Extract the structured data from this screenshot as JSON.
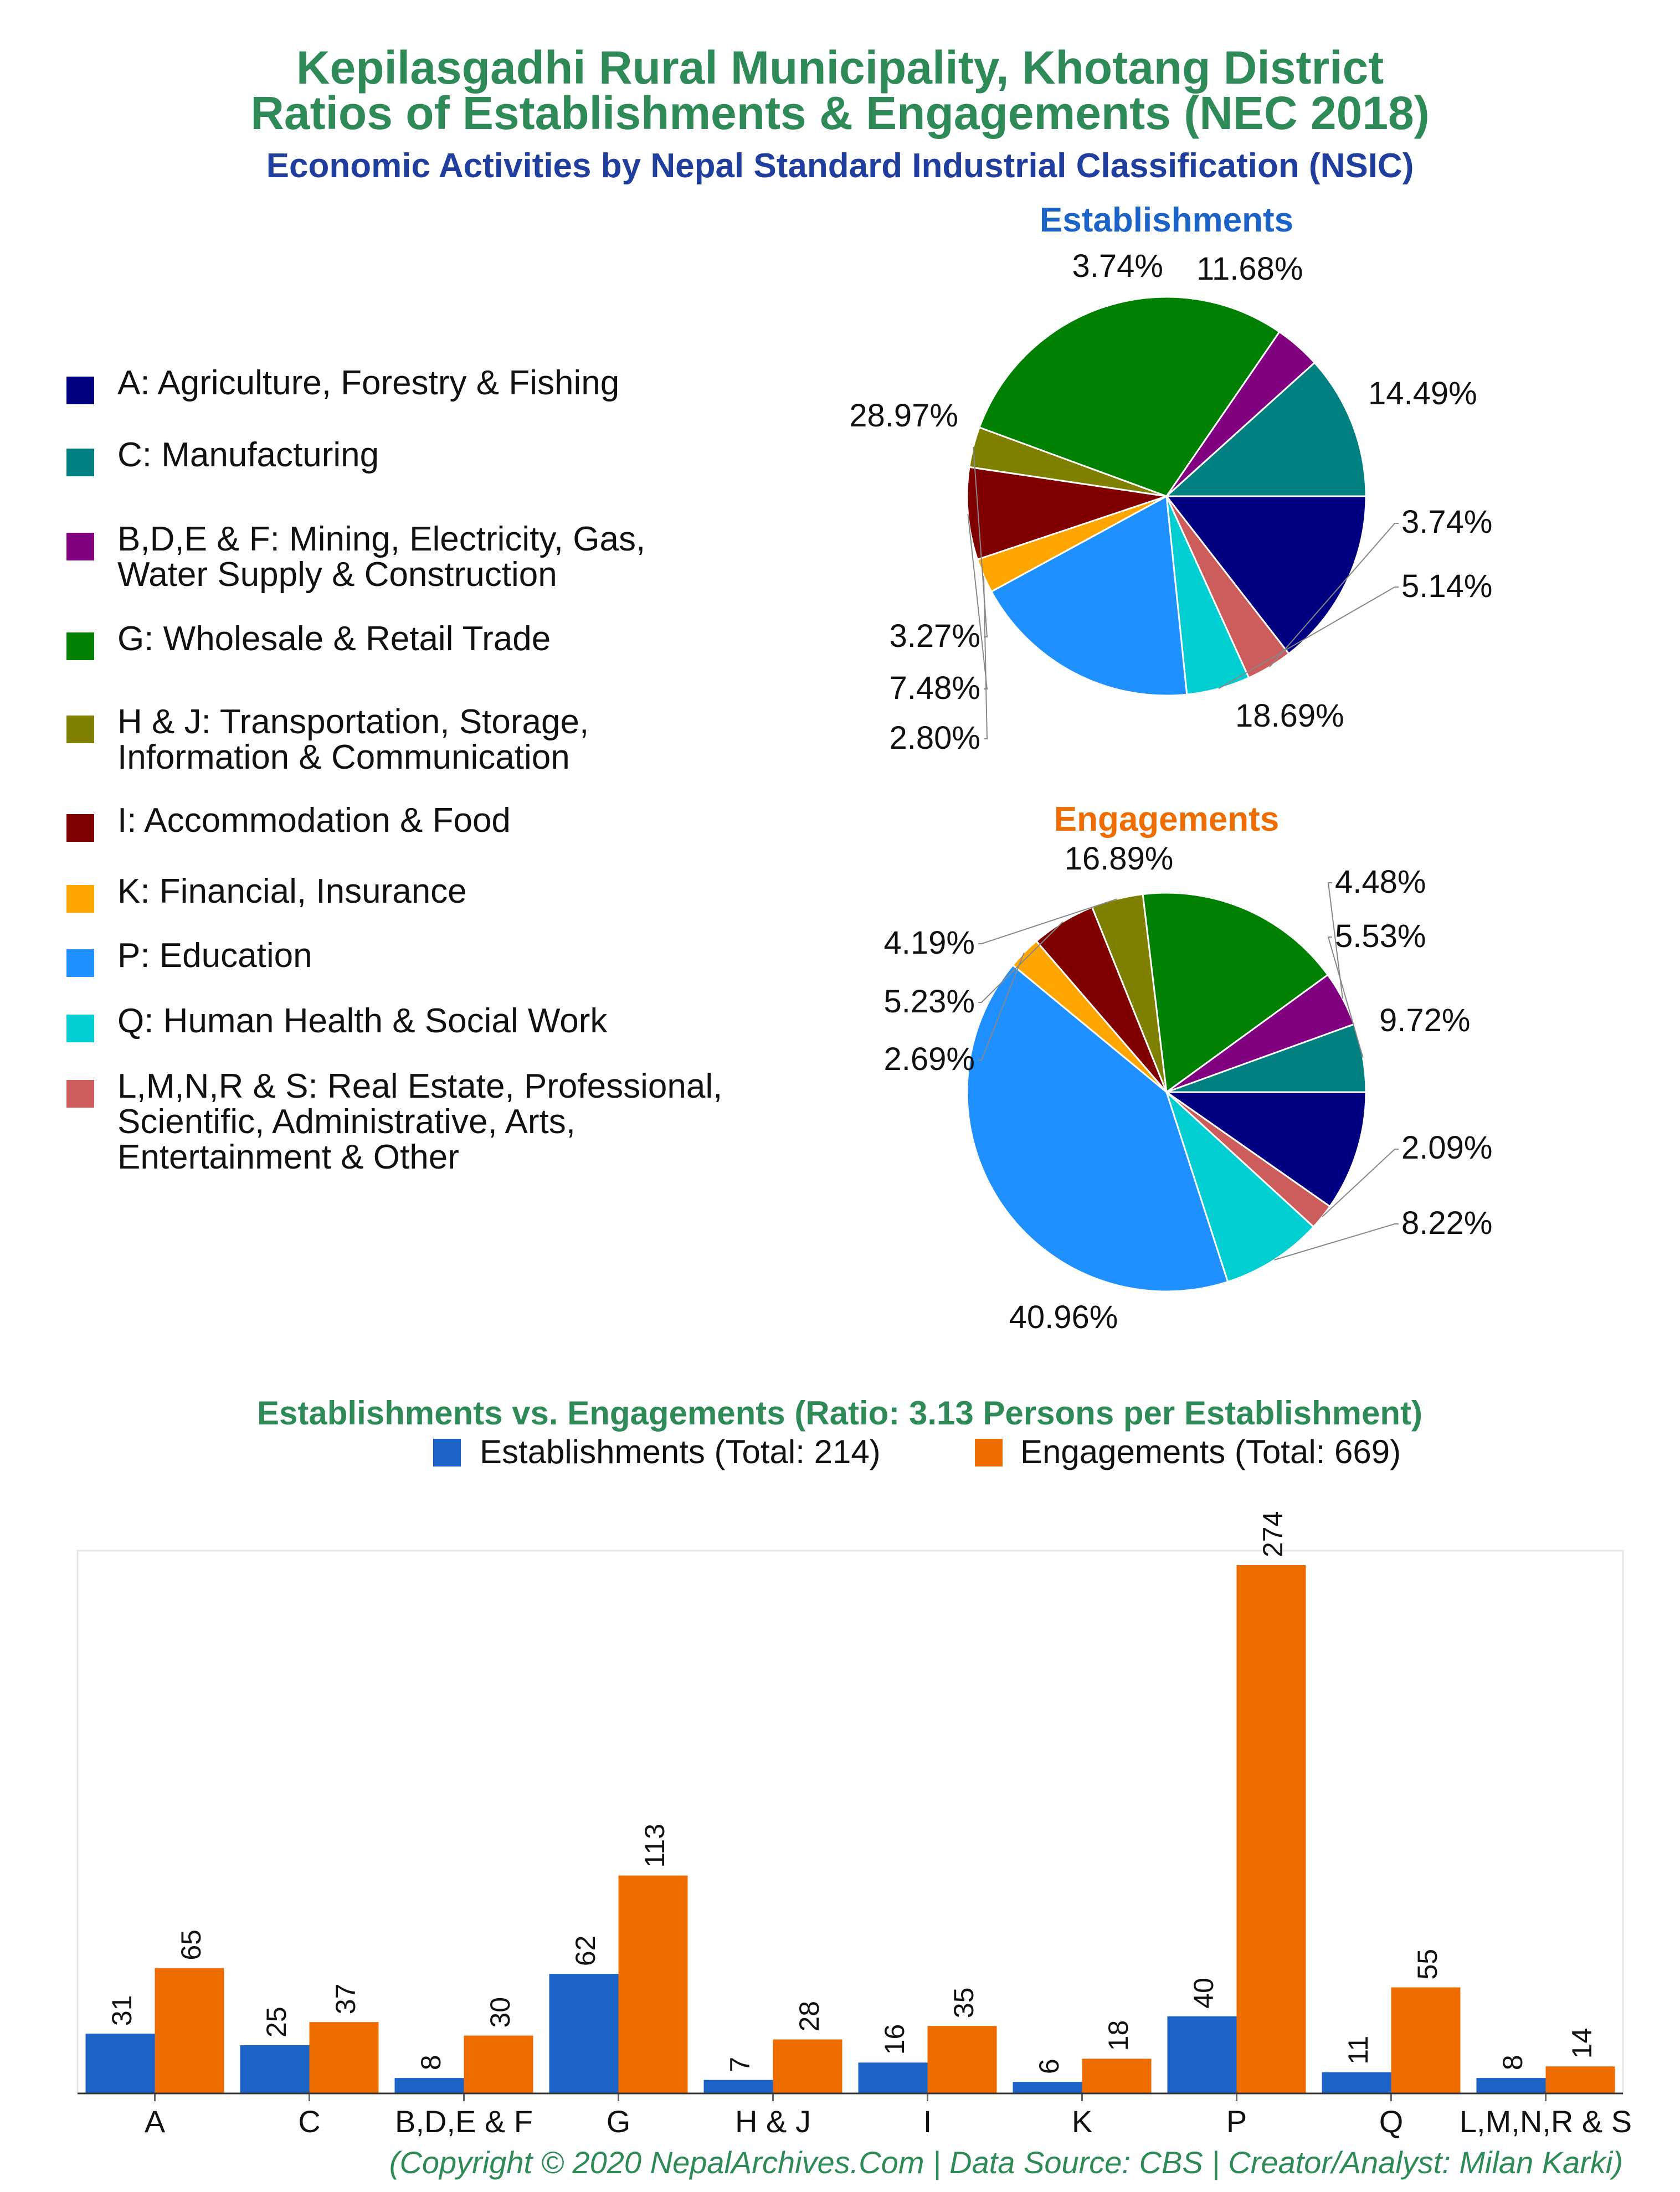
{
  "header": {
    "title_line1": "Kepilasgadhi Rural Municipality, Khotang District",
    "title_line2": "Ratios of Establishments & Engagements (NEC 2018)",
    "subtitle": "Economic Activities by Nepal Standard Industrial Classification (NSIC)"
  },
  "colors": {
    "A": "#000080",
    "C": "#008080",
    "BDEF": "#800080",
    "G": "#008000",
    "HJ": "#808000",
    "I": "#800000",
    "K": "#ffa500",
    "P": "#1e90ff",
    "Q": "#00ced1",
    "LMNRS": "#cd5c5c",
    "establishments_bar": "#1b63c6",
    "engagements_bar": "#ef6c00"
  },
  "legend": [
    {
      "key": "A",
      "label": "A: Agriculture, Forestry & Fishing"
    },
    {
      "key": "C",
      "label": "C: Manufacturing"
    },
    {
      "key": "BDEF",
      "label": "B,D,E & F: Mining, Electricity, Gas,\nWater Supply & Construction"
    },
    {
      "key": "G",
      "label": "G: Wholesale & Retail Trade"
    },
    {
      "key": "HJ",
      "label": "H & J: Transportation, Storage,\nInformation & Communication"
    },
    {
      "key": "I",
      "label": "I: Accommodation & Food"
    },
    {
      "key": "K",
      "label": "K: Financial, Insurance"
    },
    {
      "key": "P",
      "label": "P: Education"
    },
    {
      "key": "Q",
      "label": "Q: Human Health & Social Work"
    },
    {
      "key": "LMNRS",
      "label": "L,M,N,R & S: Real Estate, Professional,\nScientific, Administrative, Arts,\nEntertainment & Other"
    }
  ],
  "footer": "(Copyright © 2020 NepalArchives.Com | Data Source: CBS | Creator/Analyst: Milan Karki)",
  "chart_data": [
    {
      "type": "pie",
      "title": "Establishments",
      "title_color": "#1b63c6",
      "slices": [
        {
          "key": "A",
          "value": 14.49,
          "label": "14.49%"
        },
        {
          "key": "LMNRS",
          "value": 3.74,
          "label": "3.74%"
        },
        {
          "key": "Q",
          "value": 5.14,
          "label": "5.14%"
        },
        {
          "key": "P",
          "value": 18.69,
          "label": "18.69%"
        },
        {
          "key": "K",
          "value": 2.8,
          "label": "2.80%"
        },
        {
          "key": "I",
          "value": 7.48,
          "label": "7.48%"
        },
        {
          "key": "HJ",
          "value": 3.27,
          "label": "3.27%"
        },
        {
          "key": "G",
          "value": 28.97,
          "label": "28.97%"
        },
        {
          "key": "BDEF",
          "value": 3.74,
          "label": "3.74%"
        },
        {
          "key": "C",
          "value": 11.68,
          "label": "11.68%"
        }
      ]
    },
    {
      "type": "pie",
      "title": "Engagements",
      "title_color": "#ef6c00",
      "slices": [
        {
          "key": "A",
          "value": 9.72,
          "label": "9.72%"
        },
        {
          "key": "LMNRS",
          "value": 2.09,
          "label": "2.09%"
        },
        {
          "key": "Q",
          "value": 8.22,
          "label": "8.22%"
        },
        {
          "key": "P",
          "value": 40.96,
          "label": "40.96%"
        },
        {
          "key": "K",
          "value": 2.69,
          "label": "2.69%"
        },
        {
          "key": "I",
          "value": 5.23,
          "label": "5.23%"
        },
        {
          "key": "HJ",
          "value": 4.19,
          "label": "4.19%"
        },
        {
          "key": "G",
          "value": 16.89,
          "label": "16.89%"
        },
        {
          "key": "BDEF",
          "value": 4.48,
          "label": "4.48%"
        },
        {
          "key": "C",
          "value": 5.53,
          "label": "5.53%"
        }
      ]
    },
    {
      "type": "bar",
      "title": "Establishments vs. Engagements (Ratio: 3.13 Persons per Establishment)",
      "categories": [
        "A",
        "C",
        "B,D,E & F",
        "G",
        "H & J",
        "I",
        "K",
        "P",
        "Q",
        "L,M,N,R & S"
      ],
      "series": [
        {
          "name": "Establishments (Total: 214)",
          "values": [
            31,
            25,
            8,
            62,
            7,
            16,
            6,
            40,
            11,
            8
          ]
        },
        {
          "name": "Engagements (Total: 669)",
          "values": [
            65,
            37,
            30,
            113,
            28,
            35,
            18,
            274,
            55,
            14
          ]
        }
      ],
      "ylim": [
        0,
        274
      ],
      "grid": false,
      "legend_position": "top"
    }
  ]
}
